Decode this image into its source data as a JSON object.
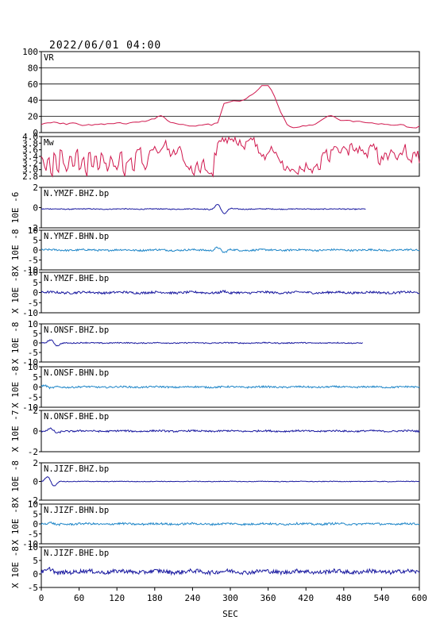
{
  "header": {
    "datetime": "2022/06/01 04:00"
  },
  "colors": {
    "axis": "#000000",
    "vr": "#d0184e",
    "mw": "#d0184e",
    "blue": "#1a1aa0",
    "cyan": "#1f86c8"
  },
  "chart_data": [
    {
      "type": "line",
      "label": "VR",
      "ylim": [
        0,
        100
      ],
      "yticks": [
        "100",
        "80",
        "60",
        "40",
        "20",
        "0"
      ],
      "grid": true,
      "color": "vr",
      "x": [
        0,
        10,
        20,
        30,
        40,
        50,
        60,
        70,
        80,
        90,
        100,
        110,
        120,
        130,
        140,
        150,
        160,
        170,
        180,
        190,
        200,
        210,
        220,
        230,
        240,
        250,
        260,
        270,
        280,
        290,
        300,
        310,
        320,
        330,
        340,
        350,
        360,
        370,
        380,
        390,
        400,
        410,
        420,
        430,
        440,
        450,
        460,
        470,
        480,
        490,
        500,
        510,
        520,
        530,
        540,
        550,
        560,
        570,
        580,
        590,
        600
      ],
      "y": [
        10,
        12,
        13,
        11,
        10,
        12,
        10,
        9,
        9,
        10,
        10,
        11,
        12,
        11,
        12,
        13,
        14,
        15,
        17,
        21,
        15,
        12,
        10,
        9,
        8,
        9,
        10,
        9,
        12,
        36,
        38,
        39,
        40,
        45,
        50,
        58,
        58,
        45,
        25,
        10,
        6,
        7,
        8,
        9,
        13,
        18,
        21,
        17,
        15,
        15,
        14,
        13,
        12,
        11,
        11,
        10,
        9,
        10,
        7,
        6,
        8
      ]
    },
    {
      "type": "line",
      "label": "Mw",
      "ylim": [
        2.8,
        4.0
      ],
      "yticks": [
        "4.0",
        "3.8",
        "3.6",
        "3.4",
        "3.2",
        "3.0",
        "2.8"
      ],
      "color": "mw",
      "x": [
        0,
        5,
        10,
        15,
        20,
        25,
        30,
        35,
        40,
        45,
        50,
        55,
        60,
        65,
        70,
        75,
        80,
        85,
        90,
        95,
        100,
        105,
        110,
        115,
        120,
        125,
        130,
        135,
        140,
        145,
        150,
        155,
        160,
        165,
        170,
        175,
        180,
        185,
        190,
        195,
        200,
        205,
        210,
        215,
        220,
        225,
        230,
        235,
        240,
        245,
        250,
        255,
        260,
        265,
        270,
        275,
        280,
        285,
        290,
        295,
        300,
        305,
        310,
        315,
        320,
        325,
        330,
        335,
        340,
        345,
        350,
        355,
        360,
        365,
        370,
        375,
        380,
        385,
        390,
        395,
        400,
        405,
        410,
        415,
        420,
        425,
        430,
        435,
        440,
        445,
        450,
        455,
        460,
        465,
        470,
        475,
        480,
        485,
        490,
        495,
        500,
        505,
        510,
        515,
        520,
        525,
        530,
        535,
        540,
        545,
        550,
        555,
        560,
        565,
        570,
        575,
        580,
        585,
        590,
        595,
        600
      ],
      "y": [
        3.4,
        3.1,
        3.3,
        2.9,
        3.5,
        3.0,
        3.6,
        3.2,
        2.95,
        3.4,
        3.1,
        3.5,
        3.0,
        3.3,
        2.95,
        3.5,
        3.1,
        3.4,
        3.0,
        3.5,
        3.2,
        2.95,
        3.4,
        3.1,
        3.0,
        3.5,
        2.95,
        3.2,
        3.3,
        3.0,
        3.5,
        3.6,
        3.2,
        3.0,
        3.4,
        3.6,
        3.7,
        3.5,
        3.6,
        3.75,
        3.6,
        3.4,
        3.6,
        3.5,
        3.7,
        3.3,
        3.1,
        3.0,
        2.9,
        3.1,
        3.0,
        3.2,
        3.0,
        2.9,
        2.9,
        3.5,
        3.8,
        3.85,
        3.85,
        3.8,
        3.9,
        3.85,
        3.8,
        3.9,
        3.7,
        3.85,
        3.9,
        3.9,
        3.7,
        3.5,
        3.4,
        3.3,
        3.5,
        3.7,
        3.5,
        3.4,
        3.2,
        3.0,
        3.1,
        2.95,
        3.0,
        2.9,
        3.1,
        3.0,
        3.2,
        3.0,
        2.9,
        3.1,
        3.0,
        3.4,
        3.5,
        3.3,
        3.6,
        3.7,
        3.65,
        3.5,
        3.7,
        3.6,
        3.75,
        3.6,
        3.65,
        3.7,
        3.6,
        3.5,
        3.65,
        3.7,
        3.6,
        3.2,
        3.4,
        3.5,
        3.3,
        3.6,
        3.5,
        3.3,
        3.5,
        3.6,
        3.4,
        3.3,
        3.5,
        3.4,
        3.2
      ]
    },
    {
      "type": "line",
      "label": "N.YMZF.BHZ.bp",
      "ylabel": "10E -6",
      "ylim": [
        -2.6,
        3.0
      ],
      "yticks": [
        "2",
        "0",
        "-2"
      ],
      "color": "blue",
      "event": 285,
      "amp": 0.9,
      "noise": 0.06
    },
    {
      "type": "line",
      "label": "N.YMZF.BHN.bp",
      "ylabel": "X 10E -8",
      "ylim": [
        -11,
        11
      ],
      "yticks": [
        "10",
        "5",
        "0",
        "-5",
        "-10"
      ],
      "color": "cyan",
      "event": 285,
      "amp": 2.0,
      "noise": 0.5
    },
    {
      "type": "line",
      "label": "N.YMZF.BHE.bp",
      "ylabel": "X 10E -8",
      "ylim": [
        -11,
        11
      ],
      "yticks": [
        "10",
        "5",
        "0",
        "-5",
        "-10"
      ],
      "color": "blue",
      "event": 295,
      "amp": 0.8,
      "noise": 0.6
    },
    {
      "type": "line",
      "label": "N.ONSF.BHZ.bp",
      "ylabel": "X 10E -8",
      "ylim": [
        -11,
        11
      ],
      "yticks": [
        "10",
        "5",
        "0",
        "-5",
        "-10"
      ],
      "color": "blue",
      "event": 20,
      "amp": 2.2,
      "noise": 0.3
    },
    {
      "type": "line",
      "label": "N.ONSF.BHN.bp",
      "ylabel": "X 10E -8",
      "ylim": [
        -11,
        11
      ],
      "yticks": [
        "10",
        "5",
        "0",
        "-5",
        "-10"
      ],
      "color": "cyan",
      "event": 10,
      "amp": 1.0,
      "noise": 0.45
    },
    {
      "type": "line",
      "label": "N.ONSF.BHE.bp",
      "ylabel": "X 10E -7",
      "ylim": [
        -3.0,
        3.0
      ],
      "yticks": [
        "2",
        "0",
        "-2"
      ],
      "color": "blue",
      "event": 20,
      "amp": 0.4,
      "noise": 0.12
    },
    {
      "type": "line",
      "label": "N.JIZF.BHZ.bp",
      "ylabel": "X 10E -8",
      "ylim": [
        -3.0,
        3.0
      ],
      "yticks": [
        "2",
        "0",
        "-2"
      ],
      "color": "blue",
      "event": 15,
      "amp": 1.0,
      "noise": 0.05
    },
    {
      "type": "line",
      "label": "N.JIZF.BHN.bp",
      "ylabel": "X 10E -8",
      "ylim": [
        -11,
        11
      ],
      "yticks": [
        "10",
        "5",
        "0",
        "-5",
        "-10"
      ],
      "color": "cyan",
      "event": 20,
      "amp": 0.6,
      "noise": 0.55
    },
    {
      "type": "line",
      "label": "N.JIZF.BHE.bp",
      "ylabel": "X 10E -8",
      "ylim": [
        -7,
        11
      ],
      "yticks": [
        "10",
        "5",
        "0",
        "-5"
      ],
      "color": "blue",
      "event": 20,
      "amp": 1.2,
      "noise": 0.9
    }
  ],
  "x_axis": {
    "label": "SEC",
    "xlim": [
      0,
      600
    ],
    "ticks": [
      "0",
      "60",
      "120",
      "180",
      "240",
      "300",
      "360",
      "420",
      "480",
      "540",
      "600"
    ]
  }
}
